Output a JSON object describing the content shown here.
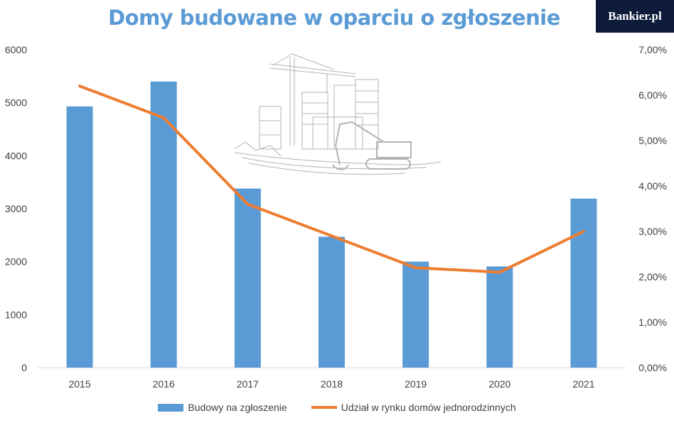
{
  "header": {
    "title": "Domy budowane w oparciu o zgłoszenie",
    "logo_text": "Bankier.pl"
  },
  "colors": {
    "title": "#5b9bd5",
    "bars": "#5b9bd5",
    "line": "#ed7d31",
    "logo_bg": "#0d1a3a"
  },
  "illustration": {
    "icon": "construction-site-sketch-icon"
  },
  "chart_data": {
    "type": "bar+line",
    "title": "Domy budowane w oparciu o zgłoszenie",
    "categories": [
      "2015",
      "2016",
      "2017",
      "2018",
      "2019",
      "2020",
      "2021"
    ],
    "series": [
      {
        "name": "Budowy na zgłoszenie",
        "type": "bar",
        "axis": "left",
        "values": [
          4930,
          5400,
          3380,
          2470,
          2000,
          1910,
          3190
        ]
      },
      {
        "name": "Udział w rynku domów jednorodzinnych",
        "type": "line",
        "axis": "right",
        "values": [
          6.2,
          5.5,
          3.6,
          2.9,
          2.2,
          2.1,
          3.0
        ]
      }
    ],
    "y_left": {
      "lim": [
        0,
        6000
      ],
      "ticks": [
        "0",
        "1000",
        "2000",
        "3000",
        "4000",
        "5000",
        "6000"
      ]
    },
    "y_right": {
      "lim": [
        0,
        7
      ],
      "ticks": [
        "0,00%",
        "1,00%",
        "2,00%",
        "3,00%",
        "4,00%",
        "5,00%",
        "6,00%",
        "7,00%"
      ]
    },
    "grid": false,
    "legend_position": "bottom"
  },
  "legend": {
    "bar_label": "Budowy na zgłoszenie",
    "line_label": "Udział w rynku domów jednorodzinnych"
  }
}
